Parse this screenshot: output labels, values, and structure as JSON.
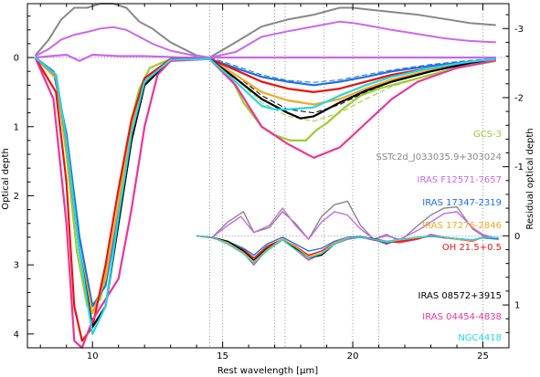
{
  "chart_data": {
    "type": "line",
    "xlabel": "Rest wavelength [μm]",
    "ylabel": "Optical depth",
    "y2label": "Residual optical depth",
    "xlim": [
      7.5,
      26
    ],
    "ylim": [
      -0.78,
      4.2
    ],
    "y2lim": [
      -3.36,
      1.62
    ],
    "xticks": [
      10,
      15,
      20,
      25
    ],
    "yticks": [
      0,
      1,
      2,
      3,
      4
    ],
    "y2ticks": [
      -3,
      -2,
      -1,
      0,
      1
    ],
    "dotted_verticals": [
      14.5,
      15.0,
      17.0,
      17.4,
      18.9,
      20.0,
      21.0,
      25.0
    ],
    "grid": false,
    "legend_placement": "right",
    "series": [
      {
        "name": "GCS-3",
        "color": "#9acd32",
        "x": [
          7.8,
          8.6,
          9.0,
          9.4,
          9.8,
          10.3,
          10.8,
          11.2,
          11.5,
          11.8,
          12.2,
          13.0,
          14.5,
          15.2,
          15.8,
          16.5,
          17.0,
          17.6,
          18.2,
          18.6,
          19.0,
          19.6,
          20.3,
          21.0,
          22.5,
          24.0,
          25.5
        ],
        "values": [
          0,
          0.3,
          1.4,
          2.8,
          3.6,
          3.5,
          2.6,
          1.6,
          0.9,
          0.45,
          0.15,
          0.02,
          0.02,
          0.2,
          0.65,
          1.0,
          1.12,
          1.2,
          1.2,
          1.05,
          0.95,
          0.75,
          0.55,
          0.45,
          0.3,
          0.15,
          0.05
        ]
      },
      {
        "name": "IRAS F12571-7657",
        "color": "#cc66ee",
        "x": [
          7.8,
          9.0,
          9.5,
          10.0,
          11.0,
          12.0,
          13.5,
          14.5,
          15.5,
          16.5,
          17.5,
          18.5,
          19.5,
          20.5,
          22.0,
          24.0,
          25.5
        ],
        "values": [
          0,
          -0.04,
          0.05,
          -0.04,
          -0.02,
          -0.02,
          0,
          0,
          0,
          0,
          0,
          0,
          0,
          0,
          0,
          0,
          0
        ]
      },
      {
        "name": "IRAS 17347-2319",
        "color": "#1f6fe8",
        "x": [
          7.8,
          8.5,
          9.0,
          9.5,
          10.0,
          10.5,
          11.0,
          11.5,
          12.0,
          13.0,
          14.5,
          15.5,
          16.5,
          17.5,
          18.5,
          19.5,
          20.5,
          21.5,
          23.0,
          24.5,
          25.5
        ],
        "values": [
          0,
          0.2,
          1.1,
          2.6,
          3.6,
          3.3,
          2.2,
          1.0,
          0.35,
          0.03,
          0.02,
          0.15,
          0.28,
          0.35,
          0.4,
          0.35,
          0.28,
          0.2,
          0.12,
          0.06,
          0.02
        ]
      },
      {
        "name": "IRAS 17276-2846",
        "color": "#f5a623",
        "x": [
          7.8,
          8.6,
          9.0,
          9.5,
          10.0,
          10.5,
          11.0,
          11.5,
          12.0,
          13.0,
          14.5,
          15.5,
          16.5,
          17.5,
          18.5,
          19.5,
          20.5,
          21.5,
          23.0,
          24.5,
          25.5
        ],
        "values": [
          0,
          0.3,
          1.3,
          2.8,
          3.7,
          3.2,
          2.1,
          1.0,
          0.35,
          0.03,
          0.02,
          0.25,
          0.5,
          0.62,
          0.68,
          0.6,
          0.45,
          0.32,
          0.18,
          0.08,
          0.03
        ]
      },
      {
        "name": "OH 21.5+0.5",
        "color": "#e8140c",
        "x": [
          7.8,
          8.6,
          9.0,
          9.3,
          9.6,
          10.0,
          10.5,
          11.0,
          11.5,
          12.0,
          13.0,
          14.5,
          15.5,
          16.5,
          17.5,
          18.5,
          19.5,
          20.5,
          21.5,
          23.0,
          24.5,
          25.5
        ],
        "values": [
          0,
          0.5,
          1.8,
          3.6,
          4.1,
          3.9,
          3.0,
          1.9,
          0.9,
          0.3,
          0.02,
          0.02,
          0.18,
          0.35,
          0.45,
          0.5,
          0.45,
          0.35,
          0.25,
          0.15,
          0.07,
          0.02
        ]
      },
      {
        "name": "IRAS 08572+3915",
        "color": "#000000",
        "x": [
          7.8,
          8.6,
          9.0,
          9.5,
          10.0,
          10.5,
          11.0,
          11.5,
          12.0,
          13.0,
          14.5,
          15.5,
          16.5,
          17.5,
          18.0,
          18.5,
          19.5,
          20.5,
          21.5,
          23.0,
          24.5,
          25.5
        ],
        "values": [
          0,
          0.25,
          1.2,
          2.8,
          3.9,
          3.6,
          2.4,
          1.2,
          0.4,
          0.03,
          0.02,
          0.3,
          0.6,
          0.8,
          0.88,
          0.85,
          0.65,
          0.48,
          0.35,
          0.2,
          0.08,
          0.02
        ]
      },
      {
        "name": "IRAS 04454-4838",
        "color": "#ee3399",
        "x": [
          7.8,
          8.5,
          9.0,
          9.3,
          9.6,
          10.0,
          10.5,
          11.0,
          11.5,
          12.0,
          12.5,
          13.0,
          14.5,
          15.5,
          16.5,
          17.5,
          18.5,
          19.5,
          20.5,
          21.5,
          22.5,
          24.0,
          25.5
        ],
        "values": [
          0,
          0.6,
          2.4,
          4.1,
          4.2,
          3.8,
          3.5,
          3.2,
          2.2,
          1.0,
          0.25,
          0.05,
          0.02,
          0.4,
          1.0,
          1.25,
          1.45,
          1.3,
          0.95,
          0.6,
          0.35,
          0.15,
          0.04
        ]
      },
      {
        "name": "NGC4418",
        "color": "#22d8e8",
        "x": [
          7.8,
          8.6,
          9.0,
          9.5,
          10.0,
          10.5,
          11.0,
          11.5,
          12.0,
          13.0,
          14.5,
          15.5,
          16.5,
          17.0,
          17.5,
          18.5,
          19.5,
          20.5,
          21.5,
          23.0,
          24.5,
          25.5
        ],
        "values": [
          0,
          0.25,
          1.2,
          2.8,
          4.0,
          3.6,
          2.3,
          1.1,
          0.35,
          0.03,
          0.02,
          0.35,
          0.7,
          0.75,
          0.75,
          0.72,
          0.55,
          0.4,
          0.28,
          0.15,
          0.06,
          0.02
        ]
      }
    ],
    "templates": [
      {
        "color": "#000000",
        "x": [
          14.5,
          15.5,
          16.5,
          17.5,
          18.5,
          19.5,
          20.5,
          21.5,
          23,
          24.5,
          25.5
        ],
        "values": [
          0,
          0.25,
          0.55,
          0.75,
          0.8,
          0.68,
          0.5,
          0.35,
          0.2,
          0.08,
          0.02
        ]
      },
      {
        "color": "#9acd32",
        "x": [
          14.5,
          15.5,
          16.5,
          17.5,
          18.5,
          19.5,
          20.5,
          21.5,
          23,
          24.5,
          25.5
        ],
        "values": [
          0,
          0.3,
          0.65,
          0.85,
          0.92,
          0.8,
          0.6,
          0.42,
          0.25,
          0.1,
          0.03
        ]
      },
      {
        "color": "#1f6fe8",
        "x": [
          14.5,
          15.5,
          16.5,
          17.5,
          18.5,
          19.5,
          20.5,
          21.5,
          23,
          24.5,
          25.5
        ],
        "values": [
          0,
          0.12,
          0.25,
          0.33,
          0.36,
          0.32,
          0.25,
          0.18,
          0.1,
          0.04,
          0.01
        ]
      }
    ],
    "top_curves": [
      {
        "color": "#888888",
        "x": [
          7.8,
          8.3,
          8.8,
          9.3,
          9.8,
          10.3,
          10.8,
          11.3,
          11.8,
          12.3,
          13.0,
          14.0,
          14.5
        ],
        "values": [
          -0.03,
          -0.25,
          -0.55,
          -0.72,
          -0.72,
          -0.78,
          -0.78,
          -0.72,
          -0.52,
          -0.42,
          -0.22,
          -0.03,
          0.0
        ]
      },
      {
        "color": "#888888",
        "x": [
          14.5,
          15.5,
          16.5,
          17.5,
          18.5,
          19.5,
          20.0,
          20.5,
          21.5,
          22.5,
          23.5,
          24.5,
          25.5
        ],
        "values": [
          0.0,
          -0.22,
          -0.45,
          -0.55,
          -0.62,
          -0.72,
          -0.72,
          -0.7,
          -0.66,
          -0.62,
          -0.56,
          -0.5,
          -0.47
        ]
      },
      {
        "color": "#cc66ee",
        "x": [
          7.8,
          8.3,
          8.8,
          9.3,
          9.8,
          10.3,
          10.8,
          11.3,
          11.8,
          12.3,
          13.0,
          14.0,
          14.5
        ],
        "values": [
          -0.02,
          -0.12,
          -0.26,
          -0.33,
          -0.37,
          -0.42,
          -0.44,
          -0.4,
          -0.3,
          -0.2,
          -0.1,
          -0.02,
          0.0
        ]
      },
      {
        "color": "#cc66ee",
        "x": [
          14.5,
          15.5,
          16.5,
          17.5,
          18.5,
          19.5,
          20.0,
          20.5,
          21.5,
          22.5,
          23.5,
          24.5,
          25.5
        ],
        "values": [
          0.0,
          -0.08,
          -0.3,
          -0.38,
          -0.45,
          -0.52,
          -0.5,
          -0.47,
          -0.4,
          -0.34,
          -0.28,
          -0.24,
          -0.22
        ]
      }
    ],
    "residuals": [
      {
        "color": "#888888",
        "x": [
          14,
          14.6,
          15.2,
          15.8,
          16.2,
          16.8,
          17.3,
          17.8,
          18.3,
          18.8,
          19.3,
          19.8,
          20.3,
          20.8,
          21.3,
          21.8,
          22.5,
          23.0,
          23.5,
          24.0,
          24.6,
          25.0,
          25.6
        ],
        "values": [
          0,
          0.02,
          -0.2,
          -0.35,
          -0.05,
          -0.12,
          -0.35,
          -0.18,
          0.05,
          -0.28,
          -0.45,
          -0.5,
          -0.15,
          0.05,
          -0.02,
          0.08,
          -0.15,
          -0.3,
          -0.4,
          -0.42,
          -0.1,
          0,
          0.05
        ]
      },
      {
        "color": "#cc66ee",
        "x": [
          14,
          14.6,
          15.2,
          15.7,
          16.2,
          16.8,
          17.3,
          17.8,
          18.3,
          18.8,
          19.3,
          19.8,
          20.3,
          20.8,
          21.3,
          21.8,
          22.5,
          23.0,
          23.5,
          24.0,
          24.6,
          25.0,
          25.6
        ],
        "values": [
          0,
          0.02,
          -0.15,
          -0.28,
          -0.05,
          -0.15,
          -0.4,
          -0.15,
          0.05,
          -0.2,
          -0.35,
          -0.3,
          -0.1,
          0.05,
          0,
          0.05,
          -0.08,
          -0.2,
          -0.32,
          -0.35,
          -0.12,
          -0.02,
          0.05
        ]
      },
      {
        "color": "#ee3399",
        "x": [
          14,
          14.6,
          15.2,
          15.8,
          16.2,
          16.7,
          17.3,
          17.8,
          18.3,
          18.8,
          19.3,
          19.8,
          20.3,
          20.8,
          21.3,
          21.8,
          22.5,
          23.0,
          23.5,
          24.0,
          24.6,
          25.0,
          25.6
        ],
        "values": [
          0,
          0.02,
          0.12,
          0.25,
          0.42,
          0.2,
          0.05,
          0.2,
          0.35,
          0.25,
          0.12,
          0.05,
          0.02,
          0.05,
          0.08,
          0.1,
          0.05,
          -0.02,
          0.02,
          0.05,
          0.08,
          0.02,
          0.04
        ]
      },
      {
        "color": "#e8140c",
        "x": [
          14,
          14.6,
          15.2,
          15.8,
          16.2,
          16.7,
          17.3,
          17.8,
          18.3,
          18.8,
          19.3,
          19.8,
          20.3,
          20.8,
          21.3,
          21.8,
          22.5,
          23.0,
          23.5,
          24.0,
          24.6,
          25.0,
          25.6
        ],
        "values": [
          0,
          0.03,
          0.1,
          0.2,
          0.32,
          0.15,
          0.05,
          0.15,
          0.28,
          0.22,
          0.1,
          0.04,
          0.02,
          0.06,
          0.1,
          0.08,
          0.04,
          0,
          0.03,
          0.05,
          0.07,
          0.02,
          0.03
        ]
      },
      {
        "color": "#1f6fe8",
        "x": [
          14,
          14.6,
          15.2,
          15.8,
          16.2,
          16.7,
          17.3,
          17.8,
          18.3,
          18.8,
          19.3,
          19.8,
          20.3,
          20.8,
          21.3,
          21.8,
          22.5,
          23.0,
          23.5,
          24.0,
          24.6,
          25.0,
          25.6
        ],
        "values": [
          0,
          0.02,
          0.08,
          0.18,
          0.28,
          0.12,
          0.02,
          0.12,
          0.22,
          0.18,
          0.08,
          0.02,
          0.01,
          0.05,
          0.12,
          0.05,
          0.02,
          0.01,
          0.02,
          0.04,
          0.06,
          0.03,
          0.05
        ]
      },
      {
        "color": "#000000",
        "x": [
          14,
          14.6,
          15.2,
          15.8,
          16.2,
          16.7,
          17.3,
          17.8,
          18.3,
          18.8,
          19.3,
          19.8,
          20.3,
          20.8,
          21.3,
          21.8,
          22.5,
          23.0,
          23.5,
          24.0,
          24.6,
          25.0,
          25.6
        ],
        "values": [
          0,
          0.02,
          0.08,
          0.22,
          0.35,
          0.18,
          0.05,
          0.18,
          0.32,
          0.28,
          0.12,
          0.04,
          0.02,
          0.04,
          0.08,
          0.06,
          0.03,
          0,
          0.02,
          0.04,
          0.06,
          0.02,
          0.03
        ]
      },
      {
        "color": "#f5a623",
        "x": [
          14,
          14.6,
          15.2,
          15.8,
          16.2,
          16.7,
          17.3,
          17.8,
          18.3,
          18.8,
          19.3,
          19.8,
          20.3,
          20.8,
          21.3,
          21.8,
          22.5,
          23.0,
          23.5,
          24.0,
          24.6,
          25.0,
          25.6
        ],
        "values": [
          0,
          0.02,
          0.1,
          0.24,
          0.38,
          0.2,
          0.04,
          0.16,
          0.3,
          0.25,
          0.1,
          0.03,
          0.02,
          0.05,
          0.09,
          0.06,
          0.03,
          0,
          0.02,
          0.05,
          0.07,
          0.02,
          0.03
        ]
      },
      {
        "color": "#22d8e8",
        "x": [
          14,
          14.6,
          15.2,
          15.8,
          16.2,
          16.7,
          17.3,
          17.8,
          18.3,
          18.8,
          19.3,
          19.8,
          20.3,
          20.8,
          21.3,
          21.8,
          22.5,
          23.0,
          23.5,
          24.0,
          24.6,
          25.0,
          25.6
        ],
        "values": [
          0,
          0.02,
          0.12,
          0.26,
          0.4,
          0.22,
          0.06,
          0.2,
          0.32,
          0.26,
          0.12,
          0.04,
          0.02,
          0.05,
          0.08,
          0.05,
          0.02,
          0,
          0.02,
          0.04,
          0.06,
          0.02,
          0.03
        ]
      }
    ],
    "labels_upper": [
      "GCS-3",
      "SSTc2d_J033035.9+303024",
      "IRAS F12571-7657",
      "IRAS 17347-2319",
      "IRAS 17276-2846",
      "OH 21.5+0.5"
    ],
    "labels_lower": [
      "IRAS 08572+3915",
      "IRAS 04454-4838",
      "NGC4418"
    ],
    "label_colors_upper": [
      "#9acd32",
      "#888888",
      "#cc66ee",
      "#1f6fe8",
      "#f5a623",
      "#e8140c"
    ],
    "label_colors_lower": [
      "#000000",
      "#ee3399",
      "#22d8e8"
    ]
  }
}
